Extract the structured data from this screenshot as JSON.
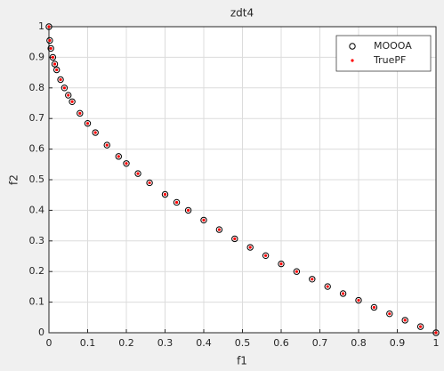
{
  "chart_data": {
    "type": "scatter",
    "title": "zdt4",
    "x_label": "f1",
    "y_label": "f2",
    "x": [
      0,
      0.002,
      0.005,
      0.01,
      0.015,
      0.02,
      0.03,
      0.04,
      0.05,
      0.06,
      0.08,
      0.1,
      0.12,
      0.15,
      0.18,
      0.2,
      0.23,
      0.26,
      0.3,
      0.33,
      0.36,
      0.4,
      0.44,
      0.48,
      0.52,
      0.56,
      0.6,
      0.64,
      0.68,
      0.72,
      0.76,
      0.8,
      0.84,
      0.88,
      0.92,
      0.96,
      1
    ],
    "series": [
      {
        "name": "MOOOA",
        "color": "#000000",
        "marker": "circle",
        "values": [
          1,
          0.955,
          0.929,
          0.9,
          0.878,
          0.859,
          0.827,
          0.8,
          0.776,
          0.755,
          0.717,
          0.684,
          0.654,
          0.613,
          0.576,
          0.553,
          0.52,
          0.49,
          0.452,
          0.426,
          0.4,
          0.368,
          0.337,
          0.307,
          0.279,
          0.252,
          0.225,
          0.2,
          0.175,
          0.151,
          0.128,
          0.106,
          0.083,
          0.062,
          0.041,
          0.02,
          0
        ]
      },
      {
        "name": "TruePF",
        "color": "#ff0000",
        "marker": "dot",
        "values": [
          1,
          0.955,
          0.929,
          0.9,
          0.878,
          0.859,
          0.827,
          0.8,
          0.776,
          0.755,
          0.717,
          0.684,
          0.654,
          0.613,
          0.576,
          0.553,
          0.52,
          0.49,
          0.452,
          0.426,
          0.4,
          0.368,
          0.337,
          0.307,
          0.279,
          0.252,
          0.225,
          0.2,
          0.175,
          0.151,
          0.128,
          0.106,
          0.083,
          0.062,
          0.041,
          0.02,
          0
        ]
      }
    ],
    "xlim": [
      0,
      1
    ],
    "ylim": [
      0,
      1
    ],
    "xticks": [
      0,
      0.1,
      0.2,
      0.3,
      0.4,
      0.5,
      0.6,
      0.7,
      0.8,
      0.9,
      1
    ],
    "yticks": [
      0,
      0.1,
      0.2,
      0.3,
      0.4,
      0.5,
      0.6,
      0.7,
      0.8,
      0.9,
      1
    ],
    "grid": true,
    "legend_position": "northeast"
  }
}
